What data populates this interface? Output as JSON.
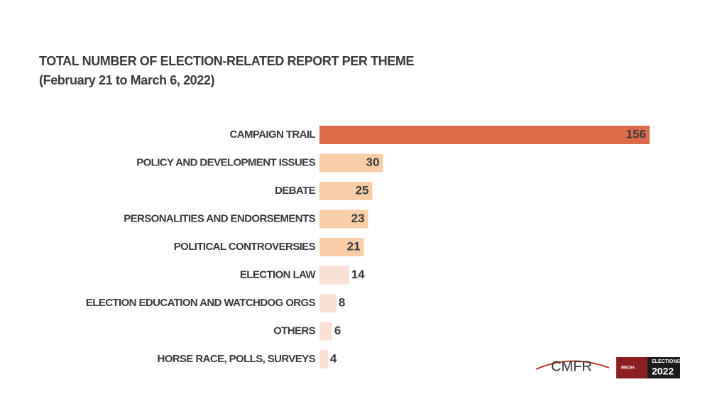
{
  "chart_data": {
    "type": "bar",
    "orientation": "horizontal",
    "title": "TOTAL NUMBER OF ELECTION-RELATED REPORT PER THEME",
    "subtitle": "(February 21 to March 6, 2022)",
    "categories": [
      "CAMPAIGN TRAIL",
      "POLICY AND DEVELOPMENT ISSUES",
      "DEBATE",
      "PERSONALITIES AND ENDORSEMENTS",
      "POLITICAL CONTROVERSIES",
      "ELECTION LAW",
      "ELECTION EDUCATION AND WATCHDOG ORGS",
      "OTHERS",
      "HORSE RACE, POLLS, SURVEYS"
    ],
    "values": [
      156,
      30,
      25,
      23,
      21,
      14,
      8,
      6,
      4
    ],
    "colors": [
      "#dd6a48",
      "#f9cda6",
      "#f9cda6",
      "#f9cda6",
      "#f9cda6",
      "#fbe0d5",
      "#fbe0d5",
      "#fbe0d5",
      "#fbe0d5"
    ],
    "logos": {
      "cmfr": "CMFR",
      "media": "MEDIA",
      "elections": "ELECTIONS",
      "year": "2022"
    }
  }
}
